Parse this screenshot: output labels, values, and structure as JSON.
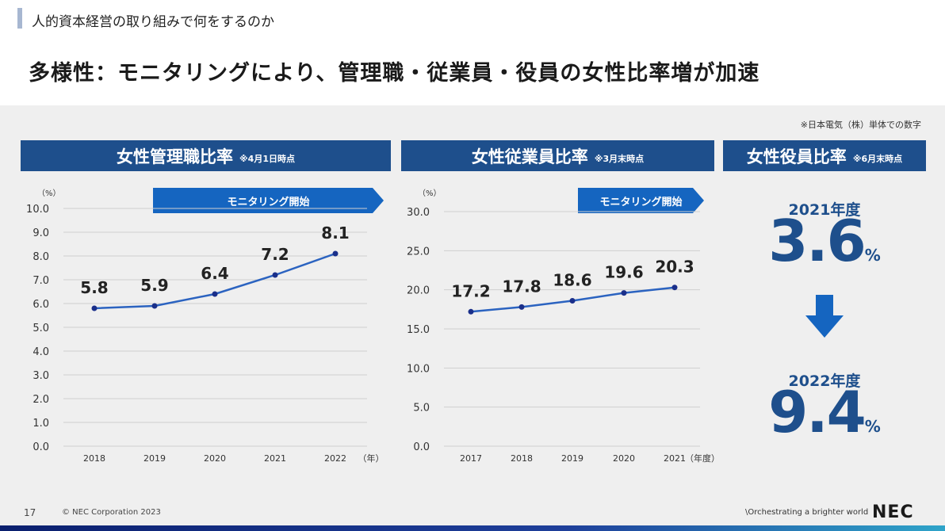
{
  "header": {
    "breadcrumb": "人的資本経営の取り組みで何をするのか",
    "title": "多様性：モニタリングにより、管理職・従業員・役員の女性比率増が加速"
  },
  "note": "※日本電気（株）単体での数字",
  "panels": {
    "managers": {
      "title": "女性管理職比率",
      "subtitle": "※4月1日時点",
      "monitoring_label": "モニタリング開始"
    },
    "employees": {
      "title": "女性従業員比率",
      "subtitle": "※3月末時点",
      "monitoring_label": "モニタリング開始"
    },
    "executives": {
      "title": "女性役員比率",
      "subtitle": "※6月末時点",
      "year1": "2021年度",
      "value1": "3.6",
      "unit1": "%",
      "year2": "2022年度",
      "value2": "9.4",
      "unit2": "%"
    }
  },
  "chart_data": [
    {
      "type": "line",
      "title": "女性管理職比率",
      "ylabel": "（%）",
      "xlabel": "（年）",
      "categories": [
        "2018",
        "2019",
        "2020",
        "2021",
        "2022"
      ],
      "values": [
        5.8,
        5.9,
        6.4,
        7.2,
        8.1
      ],
      "data_labels": [
        "5.8",
        "5.9",
        "6.4",
        "7.2",
        "8.1"
      ],
      "ylim": [
        0,
        10
      ],
      "yticks": [
        "0.0",
        "1.0",
        "2.0",
        "3.0",
        "4.0",
        "5.0",
        "6.0",
        "7.0",
        "8.0",
        "9.0",
        "10.0"
      ],
      "grid": true
    },
    {
      "type": "line",
      "title": "女性従業員比率",
      "ylabel": "（%）",
      "xlabel": "（年度）",
      "categories": [
        "2017",
        "2018",
        "2019",
        "2020",
        "2021"
      ],
      "values": [
        17.2,
        17.8,
        18.6,
        19.6,
        20.3
      ],
      "data_labels": [
        "17.2",
        "17.8",
        "18.6",
        "19.6",
        "20.3"
      ],
      "ylim": [
        0,
        30
      ],
      "yticks": [
        "0.0",
        "5.0",
        "10.0",
        "15.0",
        "20.0",
        "25.0",
        "30.0"
      ],
      "grid": true
    }
  ],
  "footer": {
    "page_number": "17",
    "copyright": "© NEC Corporation 2023",
    "tagline": "\\Orchestrating a brighter world",
    "logo": "NEC"
  },
  "colors": {
    "primary": "#1e4f8c",
    "accent": "#1565c0",
    "line": "#2b63c0",
    "marker": "#1a2f8a"
  }
}
